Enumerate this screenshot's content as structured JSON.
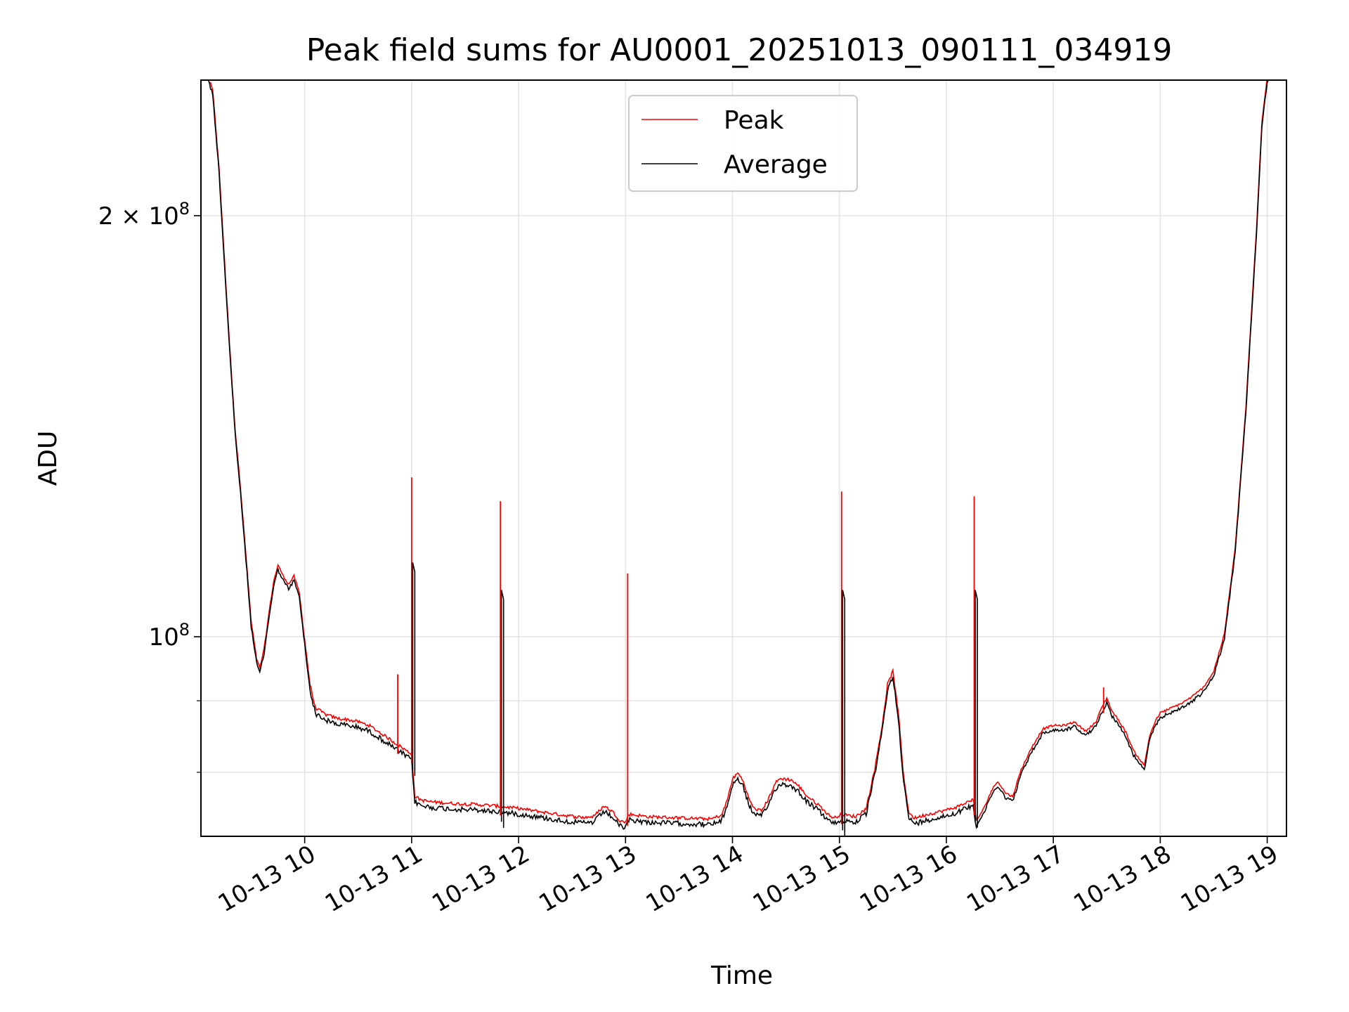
{
  "chart_data": {
    "type": "line",
    "title": "Peak field sums for AU0001_20251013_090111_034919",
    "xlabel": "Time",
    "ylabel": "ADU",
    "yscale": "log",
    "xlim_hours": [
      9.03,
      19.18
    ],
    "ylim": [
      72000000,
      250000000
    ],
    "x_ticks": [
      {
        "hour": 10,
        "label": "10-13 10"
      },
      {
        "hour": 11,
        "label": "10-13 11"
      },
      {
        "hour": 12,
        "label": "10-13 12"
      },
      {
        "hour": 13,
        "label": "10-13 13"
      },
      {
        "hour": 14,
        "label": "10-13 14"
      },
      {
        "hour": 15,
        "label": "10-13 15"
      },
      {
        "hour": 16,
        "label": "10-13 16"
      },
      {
        "hour": 17,
        "label": "10-13 17"
      },
      {
        "hour": 18,
        "label": "10-13 18"
      },
      {
        "hour": 19,
        "label": "10-13 19"
      }
    ],
    "y_major_ticks": [
      {
        "value": 100000000,
        "base": "10",
        "exp": "8",
        "coef": ""
      },
      {
        "value": 200000000,
        "base": "10",
        "exp": "8",
        "coef": "2 × "
      }
    ],
    "y_minor_ticks": [
      80000000,
      90000000
    ],
    "grid": true,
    "legend_position": "top-center",
    "series": [
      {
        "name": "Peak",
        "color": "#ff0000"
      },
      {
        "name": "Average",
        "color": "#000000"
      }
    ],
    "average_points": [
      [
        9.03,
        250000000
      ],
      [
        9.1,
        250000000
      ],
      [
        9.14,
        245000000
      ],
      [
        9.2,
        215000000
      ],
      [
        9.25,
        185000000
      ],
      [
        9.3,
        160000000
      ],
      [
        9.35,
        140000000
      ],
      [
        9.4,
        127000000
      ],
      [
        9.45,
        114000000
      ],
      [
        9.5,
        102000000
      ],
      [
        9.55,
        96000000
      ],
      [
        9.58,
        94500000
      ],
      [
        9.62,
        97500000
      ],
      [
        9.67,
        104000000
      ],
      [
        9.71,
        109000000
      ],
      [
        9.75,
        112000000
      ],
      [
        9.8,
        110000000
      ],
      [
        9.85,
        108500000
      ],
      [
        9.9,
        110000000
      ],
      [
        9.95,
        107000000
      ],
      [
        10.0,
        99000000
      ],
      [
        10.05,
        92000000
      ],
      [
        10.1,
        88500000
      ],
      [
        10.2,
        87500000
      ],
      [
        10.3,
        87000000
      ],
      [
        10.4,
        86800000
      ],
      [
        10.5,
        86500000
      ],
      [
        10.6,
        86000000
      ],
      [
        10.7,
        85000000
      ],
      [
        10.8,
        84000000
      ],
      [
        10.9,
        83000000
      ],
      [
        11.0,
        82000000
      ],
      [
        11.03,
        76500000
      ],
      [
        11.1,
        76000000
      ],
      [
        11.2,
        75800000
      ],
      [
        11.4,
        75600000
      ],
      [
        11.6,
        75500000
      ],
      [
        11.8,
        75300000
      ],
      [
        12.0,
        75000000
      ],
      [
        12.2,
        74600000
      ],
      [
        12.4,
        74200000
      ],
      [
        12.6,
        73900000
      ],
      [
        12.7,
        74000000
      ],
      [
        12.8,
        75300000
      ],
      [
        12.88,
        74600000
      ],
      [
        12.95,
        73500000
      ],
      [
        13.0,
        73300000
      ],
      [
        13.03,
        74300000
      ],
      [
        13.2,
        74000000
      ],
      [
        13.4,
        73900000
      ],
      [
        13.6,
        73800000
      ],
      [
        13.8,
        73700000
      ],
      [
        13.9,
        74200000
      ],
      [
        13.95,
        76000000
      ],
      [
        14.0,
        78700000
      ],
      [
        14.05,
        79500000
      ],
      [
        14.1,
        78500000
      ],
      [
        14.15,
        76300000
      ],
      [
        14.2,
        75000000
      ],
      [
        14.27,
        74700000
      ],
      [
        14.33,
        76000000
      ],
      [
        14.4,
        78200000
      ],
      [
        14.45,
        78800000
      ],
      [
        14.55,
        78600000
      ],
      [
        14.62,
        77800000
      ],
      [
        14.7,
        76500000
      ],
      [
        14.8,
        75500000
      ],
      [
        14.9,
        74200000
      ],
      [
        14.95,
        73800000
      ],
      [
        15.0,
        74200000
      ],
      [
        15.05,
        74200000
      ],
      [
        15.15,
        74000000
      ],
      [
        15.25,
        75000000
      ],
      [
        15.33,
        80000000
      ],
      [
        15.4,
        86000000
      ],
      [
        15.45,
        92000000
      ],
      [
        15.5,
        94000000
      ],
      [
        15.55,
        88000000
      ],
      [
        15.6,
        79000000
      ],
      [
        15.65,
        74500000
      ],
      [
        15.7,
        73800000
      ],
      [
        15.8,
        74200000
      ],
      [
        15.9,
        74500000
      ],
      [
        16.0,
        74800000
      ],
      [
        16.1,
        75200000
      ],
      [
        16.2,
        75800000
      ],
      [
        16.25,
        76200000
      ],
      [
        16.28,
        73500000
      ],
      [
        16.35,
        75000000
      ],
      [
        16.42,
        77200000
      ],
      [
        16.48,
        78500000
      ],
      [
        16.55,
        77000000
      ],
      [
        16.62,
        76500000
      ],
      [
        16.7,
        80000000
      ],
      [
        16.8,
        83000000
      ],
      [
        16.9,
        85500000
      ],
      [
        17.0,
        86000000
      ],
      [
        17.1,
        86000000
      ],
      [
        17.2,
        86500000
      ],
      [
        17.3,
        85200000
      ],
      [
        17.4,
        86500000
      ],
      [
        17.45,
        88500000
      ],
      [
        17.5,
        90000000
      ],
      [
        17.55,
        88000000
      ],
      [
        17.6,
        87000000
      ],
      [
        17.68,
        85000000
      ],
      [
        17.75,
        82500000
      ],
      [
        17.8,
        81500000
      ],
      [
        17.85,
        80500000
      ],
      [
        17.9,
        84500000
      ],
      [
        17.95,
        86500000
      ],
      [
        18.0,
        87800000
      ],
      [
        18.1,
        88500000
      ],
      [
        18.2,
        89200000
      ],
      [
        18.3,
        90200000
      ],
      [
        18.4,
        91500000
      ],
      [
        18.5,
        94000000
      ],
      [
        18.6,
        100000000
      ],
      [
        18.7,
        115000000
      ],
      [
        18.8,
        145000000
      ],
      [
        18.9,
        195000000
      ],
      [
        18.95,
        232000000
      ],
      [
        19.0,
        250000000
      ],
      [
        19.18,
        250000000
      ]
    ],
    "peak_spikes": [
      [
        10.87,
        94000000
      ],
      [
        11.0,
        130000000
      ],
      [
        11.83,
        125000000
      ],
      [
        13.02,
        111000000
      ],
      [
        15.02,
        127000000
      ],
      [
        16.26,
        126000000
      ],
      [
        17.47,
        92000000
      ]
    ],
    "average_spikes": [
      [
        11.0,
        113000000
      ],
      [
        11.83,
        108000000
      ],
      [
        15.02,
        108000000
      ],
      [
        16.26,
        108000000
      ]
    ]
  }
}
